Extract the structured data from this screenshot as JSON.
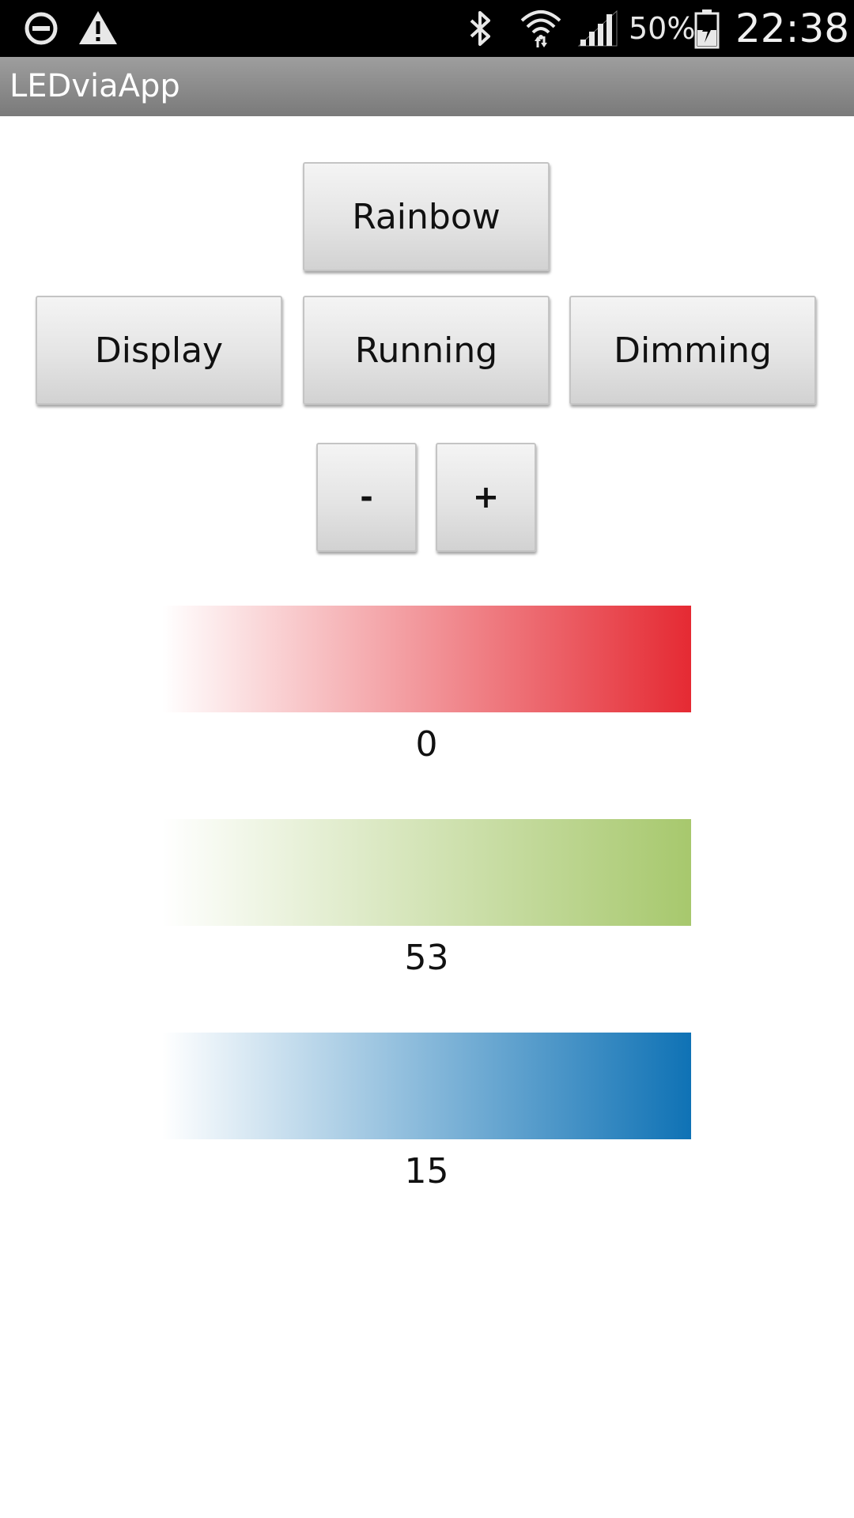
{
  "status_bar": {
    "icons_left": [
      "do-not-disturb-icon",
      "warning-icon"
    ],
    "icons_right": [
      "bluetooth-icon",
      "wifi-icon",
      "signal-icon",
      "battery-icon"
    ],
    "battery": "50%",
    "time": "22:38"
  },
  "app": {
    "title": "LEDviaApp"
  },
  "buttons": {
    "rainbow": "Rainbow",
    "display": "Display",
    "running": "Running",
    "dimming": "Dimming",
    "minus": "-",
    "plus": "+"
  },
  "color_bars": [
    {
      "name": "red",
      "value": "0",
      "color": "#e52a33"
    },
    {
      "name": "green",
      "value": "53",
      "color": "#a7c86d"
    },
    {
      "name": "blue",
      "value": "15",
      "color": "#0f72b5"
    }
  ]
}
